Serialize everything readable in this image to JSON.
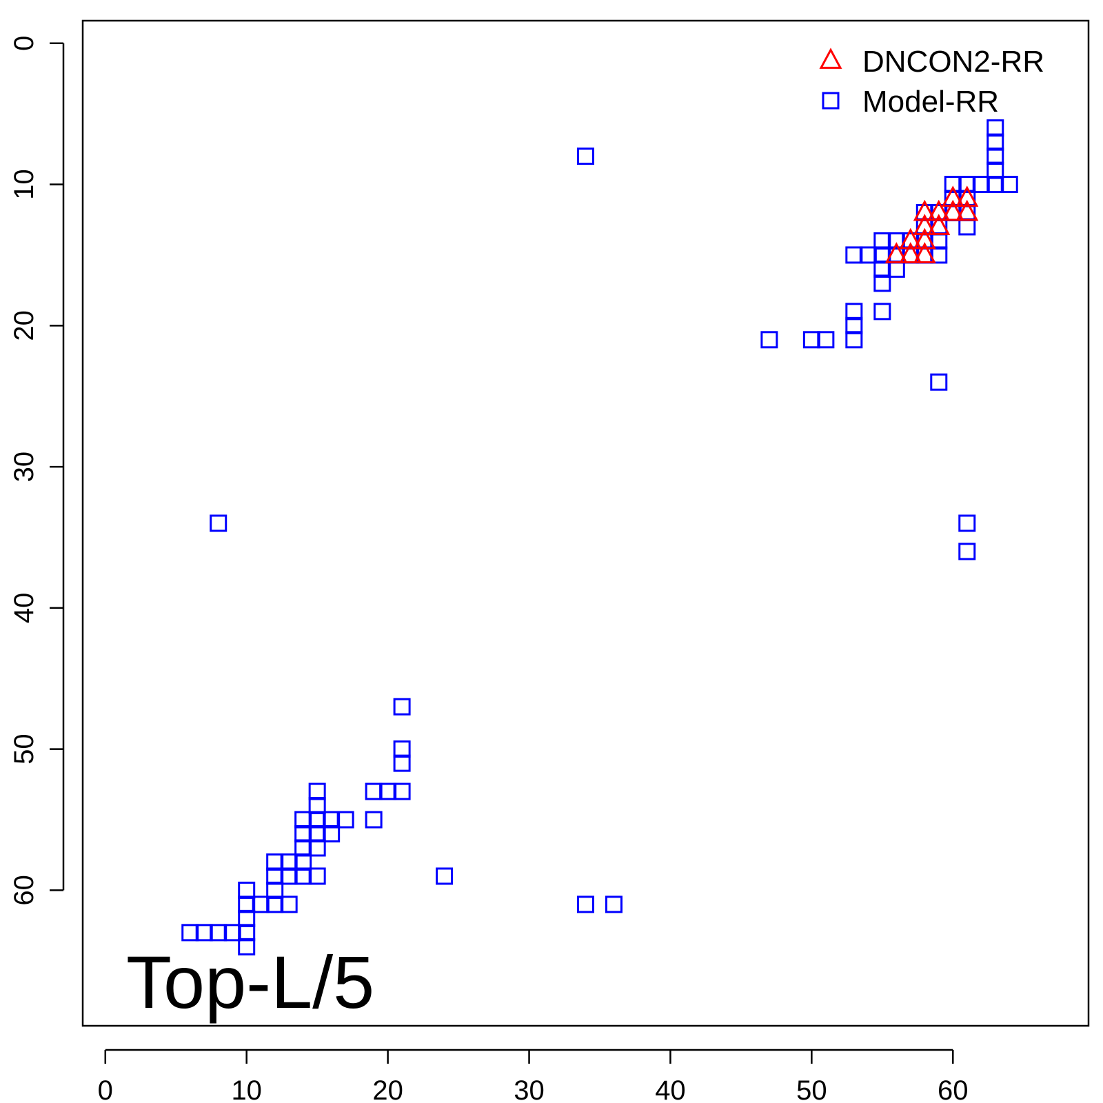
{
  "chart_data": {
    "type": "scatter",
    "title": "",
    "xlabel": "",
    "ylabel": "",
    "xlim": [
      -1.6,
      69.6
    ],
    "ylim": [
      69.6,
      -1.6
    ],
    "y_reversed": true,
    "x_ticks": [
      0,
      10,
      20,
      30,
      40,
      50,
      60
    ],
    "y_ticks": [
      0,
      10,
      20,
      30,
      40,
      50,
      60
    ],
    "grid": false,
    "legend_position": "top-right",
    "annotation": "Top-L/5",
    "series": [
      {
        "name": "DNCON2-RR",
        "marker": "triangle",
        "color": "#ff0000",
        "points": [
          [
            56,
            15
          ],
          [
            57,
            15
          ],
          [
            58,
            15
          ],
          [
            57,
            14
          ],
          [
            58,
            14
          ],
          [
            58,
            13
          ],
          [
            59,
            13
          ],
          [
            58,
            12
          ],
          [
            59,
            12
          ],
          [
            60,
            12
          ],
          [
            61,
            12
          ],
          [
            60,
            11
          ],
          [
            61,
            11
          ]
        ]
      },
      {
        "name": "Model-RR",
        "marker": "square",
        "color": "#0000ff",
        "points": [
          [
            34,
            8
          ],
          [
            63,
            6
          ],
          [
            63,
            7
          ],
          [
            63,
            8
          ],
          [
            63,
            9
          ],
          [
            63,
            10
          ],
          [
            64,
            10
          ],
          [
            60,
            10
          ],
          [
            61,
            10
          ],
          [
            62,
            10
          ],
          [
            60,
            11
          ],
          [
            61,
            11
          ],
          [
            60,
            12
          ],
          [
            61,
            12
          ],
          [
            61,
            13
          ],
          [
            58,
            12
          ],
          [
            59,
            12
          ],
          [
            58,
            13
          ],
          [
            59,
            13
          ],
          [
            58,
            14
          ],
          [
            59,
            14
          ],
          [
            58,
            15
          ],
          [
            59,
            15
          ],
          [
            55,
            14
          ],
          [
            56,
            14
          ],
          [
            57,
            14
          ],
          [
            53,
            15
          ],
          [
            54,
            15
          ],
          [
            55,
            15
          ],
          [
            56,
            15
          ],
          [
            57,
            15
          ],
          [
            55,
            16
          ],
          [
            56,
            16
          ],
          [
            55,
            17
          ],
          [
            55,
            19
          ],
          [
            53,
            19
          ],
          [
            53,
            20
          ],
          [
            47,
            21
          ],
          [
            50,
            21
          ],
          [
            51,
            21
          ],
          [
            53,
            21
          ],
          [
            59,
            24
          ],
          [
            61,
            34
          ],
          [
            61,
            36
          ],
          [
            8,
            34
          ],
          [
            21,
            47
          ],
          [
            21,
            50
          ],
          [
            21,
            51
          ],
          [
            19,
            53
          ],
          [
            20,
            53
          ],
          [
            21,
            53
          ],
          [
            19,
            55
          ],
          [
            15,
            53
          ],
          [
            15,
            54
          ],
          [
            14,
            55
          ],
          [
            15,
            55
          ],
          [
            16,
            55
          ],
          [
            17,
            55
          ],
          [
            14,
            56
          ],
          [
            15,
            56
          ],
          [
            16,
            56
          ],
          [
            14,
            57
          ],
          [
            15,
            57
          ],
          [
            12,
            58
          ],
          [
            13,
            58
          ],
          [
            14,
            58
          ],
          [
            12,
            59
          ],
          [
            13,
            59
          ],
          [
            14,
            59
          ],
          [
            15,
            59
          ],
          [
            10,
            60
          ],
          [
            12,
            60
          ],
          [
            10,
            61
          ],
          [
            11,
            61
          ],
          [
            12,
            61
          ],
          [
            13,
            61
          ],
          [
            10,
            62
          ],
          [
            10,
            63
          ],
          [
            10,
            64
          ],
          [
            6,
            63
          ],
          [
            7,
            63
          ],
          [
            8,
            63
          ],
          [
            9,
            63
          ],
          [
            24,
            59
          ],
          [
            34,
            61
          ],
          [
            36,
            61
          ]
        ]
      }
    ]
  }
}
